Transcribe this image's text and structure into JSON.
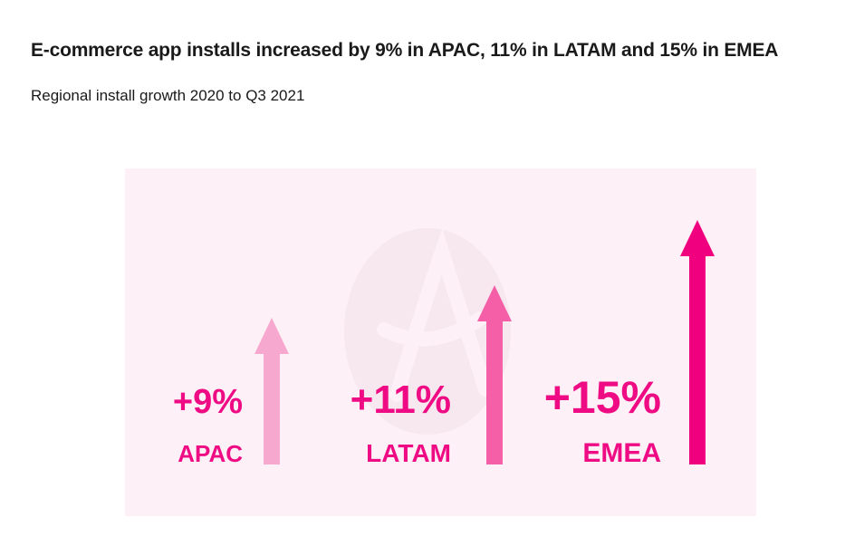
{
  "title": "E-commerce app installs increased by 9% in APAC, 11% in LATAM and 15% in EMEA",
  "subtitle": "Regional install growth 2020 to Q3 2021",
  "chart_data": {
    "type": "bar",
    "title": "E-commerce app installs increased by 9% in APAC, 11% in LATAM and 15% in EMEA",
    "subtitle": "Regional install growth 2020 to Q3 2021",
    "categories": [
      "APAC",
      "LATAM",
      "EMEA"
    ],
    "values": [
      9,
      11,
      15
    ],
    "value_labels": [
      "+9%",
      "+11%",
      "+15%"
    ],
    "unit": "%",
    "colors": [
      "#f7a8cf",
      "#f45fa8",
      "#f0007f"
    ],
    "label_color": "#ee0b84",
    "panel_color": "#fdf0f6",
    "grid": false,
    "legend": "none"
  }
}
